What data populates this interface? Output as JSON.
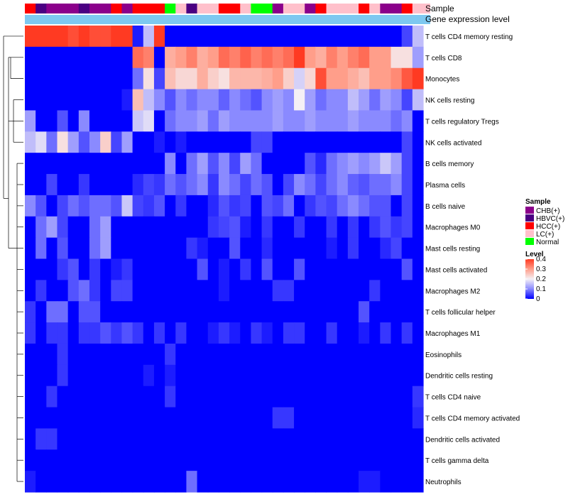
{
  "chart_data": {
    "type": "heatmap",
    "title": "",
    "annotation_labels": [
      "Sample",
      "Gene expression level"
    ],
    "rows": [
      "T cells CD4 memory resting",
      "T cells CD8",
      "Monocytes",
      "NK cells resting",
      "T cells regulatory  Tregs",
      "NK cells activated",
      "B cells memory",
      "Plasma cells",
      "B cells naive",
      "Macrophages M0",
      "Mast cells resting",
      "Mast cells activated",
      "Macrophages M2",
      "T cells follicular helper",
      "Macrophages M1",
      "Eosinophils",
      "Dendritic cells resting",
      "T cells CD4 naive",
      "T cells CD4 memory activated",
      "Dendritic cells activated",
      "T cells gamma delta",
      "Neutrophils"
    ],
    "sample_groups": [
      "HCC(+)",
      "HBVC(+)",
      "CHB(+)",
      "CHB(+)",
      "CHB(+)",
      "HBVC(+)",
      "CHB(+)",
      "CHB(+)",
      "HCC(+)",
      "CHB(+)",
      "HCC(+)",
      "HCC(+)",
      "HCC(+)",
      "Normal",
      "LC(+)",
      "HBVC(+)",
      "LC(+)",
      "LC(+)",
      "HCC(+)",
      "HCC(+)",
      "LC(+)",
      "Normal",
      "Normal",
      "CHB(+)",
      "LC(+)",
      "LC(+)",
      "CHB(+)",
      "HCC(+)",
      "LC(+)",
      "LC(+)",
      "LC(+)",
      "HCC(+)",
      "LC(+)",
      "CHB(+)",
      "CHB(+)",
      "HCC(+)",
      "LC(+)"
    ],
    "column_count": 37,
    "values": [
      [
        0.4,
        0.4,
        0.4,
        0.4,
        0.38,
        0.4,
        0.38,
        0.38,
        0.4,
        0.4,
        0.02,
        0.15,
        0.4,
        0.0,
        0.0,
        0.0,
        0.0,
        0.0,
        0.0,
        0.0,
        0.0,
        0.0,
        0.0,
        0.0,
        0.0,
        0.0,
        0.0,
        0.0,
        0.0,
        0.0,
        0.0,
        0.0,
        0.0,
        0.0,
        0.0,
        0.05,
        0.15
      ],
      [
        0.0,
        0.0,
        0.0,
        0.0,
        0.0,
        0.0,
        0.0,
        0.0,
        0.0,
        0.0,
        0.35,
        0.33,
        0.0,
        0.28,
        0.3,
        0.33,
        0.28,
        0.3,
        0.35,
        0.33,
        0.36,
        0.33,
        0.35,
        0.33,
        0.35,
        0.4,
        0.3,
        0.28,
        0.33,
        0.3,
        0.33,
        0.35,
        0.3,
        0.3,
        0.22,
        0.22,
        0.12
      ],
      [
        0.0,
        0.0,
        0.0,
        0.0,
        0.0,
        0.0,
        0.0,
        0.0,
        0.0,
        0.0,
        0.08,
        0.22,
        0.05,
        0.26,
        0.23,
        0.23,
        0.28,
        0.24,
        0.22,
        0.27,
        0.27,
        0.27,
        0.28,
        0.3,
        0.24,
        0.17,
        0.23,
        0.38,
        0.3,
        0.3,
        0.28,
        0.26,
        0.3,
        0.3,
        0.32,
        0.37,
        0.4
      ],
      [
        0.0,
        0.0,
        0.0,
        0.0,
        0.0,
        0.0,
        0.0,
        0.0,
        0.0,
        0.02,
        0.26,
        0.15,
        0.1,
        0.06,
        0.1,
        0.08,
        0.1,
        0.1,
        0.07,
        0.1,
        0.08,
        0.06,
        0.1,
        0.12,
        0.1,
        0.2,
        0.12,
        0.08,
        0.1,
        0.1,
        0.15,
        0.12,
        0.08,
        0.12,
        0.1,
        0.05,
        0.15
      ],
      [
        0.12,
        0.0,
        0.0,
        0.06,
        0.0,
        0.1,
        0.0,
        0.0,
        0.0,
        0.0,
        0.16,
        0.18,
        0.0,
        0.08,
        0.1,
        0.1,
        0.12,
        0.08,
        0.12,
        0.1,
        0.1,
        0.1,
        0.1,
        0.12,
        0.1,
        0.1,
        0.12,
        0.1,
        0.1,
        0.1,
        0.12,
        0.1,
        0.1,
        0.1,
        0.08,
        0.1,
        0.0
      ],
      [
        0.15,
        0.18,
        0.08,
        0.22,
        0.12,
        0.06,
        0.1,
        0.24,
        0.05,
        0.12,
        0.0,
        0.0,
        0.02,
        0.0,
        0.02,
        0.0,
        0.0,
        0.0,
        0.0,
        0.0,
        0.0,
        0.05,
        0.05,
        0.0,
        0.0,
        0.0,
        0.0,
        0.0,
        0.0,
        0.0,
        0.0,
        0.0,
        0.0,
        0.0,
        0.0,
        0.05,
        0.0
      ],
      [
        0.0,
        0.0,
        0.0,
        0.0,
        0.0,
        0.0,
        0.0,
        0.0,
        0.0,
        0.0,
        0.0,
        0.0,
        0.0,
        0.1,
        0.0,
        0.08,
        0.12,
        0.06,
        0.1,
        0.05,
        0.12,
        0.08,
        0.0,
        0.0,
        0.0,
        0.0,
        0.06,
        0.03,
        0.08,
        0.1,
        0.12,
        0.1,
        0.12,
        0.16,
        0.12,
        0.05,
        0.0
      ],
      [
        0.0,
        0.0,
        0.05,
        0.0,
        0.0,
        0.04,
        0.0,
        0.0,
        0.0,
        0.0,
        0.03,
        0.05,
        0.04,
        0.08,
        0.06,
        0.08,
        0.1,
        0.04,
        0.1,
        0.08,
        0.05,
        0.08,
        0.06,
        0.0,
        0.05,
        0.1,
        0.08,
        0.05,
        0.08,
        0.1,
        0.07,
        0.06,
        0.08,
        0.08,
        0.1,
        0.05,
        0.0
      ],
      [
        0.1,
        0.06,
        0.0,
        0.05,
        0.08,
        0.06,
        0.08,
        0.08,
        0.06,
        0.16,
        0.05,
        0.04,
        0.06,
        0.0,
        0.04,
        0.0,
        0.0,
        0.03,
        0.06,
        0.04,
        0.05,
        0.0,
        0.06,
        0.05,
        0.08,
        0.0,
        0.04,
        0.06,
        0.05,
        0.08,
        0.1,
        0.08,
        0.06,
        0.06,
        0.0,
        0.05,
        0.0
      ],
      [
        0.0,
        0.08,
        0.12,
        0.05,
        0.0,
        0.0,
        0.08,
        0.12,
        0.0,
        0.0,
        0.0,
        0.0,
        0.0,
        0.0,
        0.0,
        0.0,
        0.0,
        0.04,
        0.05,
        0.06,
        0.02,
        0.0,
        0.04,
        0.0,
        0.0,
        0.04,
        0.0,
        0.0,
        0.04,
        0.0,
        0.04,
        0.0,
        0.04,
        0.06,
        0.04,
        0.05,
        0.0
      ],
      [
        0.0,
        0.08,
        0.0,
        0.06,
        0.0,
        0.0,
        0.08,
        0.12,
        0.0,
        0.0,
        0.0,
        0.0,
        0.0,
        0.0,
        0.0,
        0.04,
        0.02,
        0.0,
        0.0,
        0.06,
        0.0,
        0.0,
        0.03,
        0.0,
        0.0,
        0.0,
        0.0,
        0.0,
        0.02,
        0.0,
        0.04,
        0.0,
        0.0,
        0.03,
        0.05,
        0.0,
        0.0
      ],
      [
        0.0,
        0.0,
        0.0,
        0.04,
        0.06,
        0.0,
        0.04,
        0.0,
        0.02,
        0.04,
        0.0,
        0.0,
        0.0,
        0.0,
        0.0,
        0.0,
        0.06,
        0.0,
        0.02,
        0.0,
        0.04,
        0.0,
        0.06,
        0.0,
        0.0,
        0.06,
        0.0,
        0.0,
        0.0,
        0.0,
        0.0,
        0.0,
        0.0,
        0.0,
        0.0,
        0.06,
        0.0
      ],
      [
        0.0,
        0.04,
        0.0,
        0.0,
        0.06,
        0.08,
        0.04,
        0.0,
        0.05,
        0.05,
        0.0,
        0.0,
        0.0,
        0.0,
        0.0,
        0.0,
        0.0,
        0.0,
        0.02,
        0.0,
        0.0,
        0.0,
        0.0,
        0.04,
        0.04,
        0.0,
        0.0,
        0.0,
        0.0,
        0.0,
        0.0,
        0.0,
        0.04,
        0.0,
        0.0,
        0.0,
        0.0
      ],
      [
        0.04,
        0.0,
        0.08,
        0.08,
        0.0,
        0.06,
        0.06,
        0.0,
        0.0,
        0.0,
        0.0,
        0.0,
        0.0,
        0.0,
        0.0,
        0.0,
        0.0,
        0.0,
        0.0,
        0.0,
        0.0,
        0.0,
        0.0,
        0.0,
        0.0,
        0.0,
        0.0,
        0.0,
        0.0,
        0.0,
        0.0,
        0.06,
        0.0,
        0.0,
        0.0,
        0.0,
        0.0
      ],
      [
        0.04,
        0.0,
        0.04,
        0.04,
        0.0,
        0.04,
        0.04,
        0.06,
        0.04,
        0.06,
        0.04,
        0.0,
        0.04,
        0.0,
        0.04,
        0.0,
        0.0,
        0.02,
        0.04,
        0.02,
        0.0,
        0.04,
        0.02,
        0.0,
        0.04,
        0.04,
        0.0,
        0.0,
        0.04,
        0.0,
        0.0,
        0.02,
        0.0,
        0.04,
        0.0,
        0.04,
        0.0
      ],
      [
        0.0,
        0.0,
        0.0,
        0.04,
        0.0,
        0.0,
        0.0,
        0.0,
        0.0,
        0.0,
        0.0,
        0.0,
        0.0,
        0.04,
        0.0,
        0.0,
        0.0,
        0.0,
        0.0,
        0.0,
        0.0,
        0.0,
        0.0,
        0.0,
        0.0,
        0.0,
        0.0,
        0.0,
        0.0,
        0.0,
        0.0,
        0.0,
        0.0,
        0.0,
        0.0,
        0.0,
        0.0
      ],
      [
        0.0,
        0.0,
        0.0,
        0.04,
        0.0,
        0.0,
        0.0,
        0.0,
        0.0,
        0.0,
        0.0,
        0.02,
        0.0,
        0.02,
        0.0,
        0.0,
        0.0,
        0.0,
        0.0,
        0.0,
        0.0,
        0.0,
        0.0,
        0.0,
        0.0,
        0.0,
        0.0,
        0.0,
        0.0,
        0.0,
        0.0,
        0.0,
        0.0,
        0.0,
        0.0,
        0.0,
        0.0
      ],
      [
        0.0,
        0.0,
        0.04,
        0.0,
        0.0,
        0.0,
        0.0,
        0.0,
        0.0,
        0.0,
        0.0,
        0.0,
        0.0,
        0.04,
        0.0,
        0.0,
        0.0,
        0.0,
        0.0,
        0.0,
        0.0,
        0.0,
        0.0,
        0.0,
        0.0,
        0.0,
        0.0,
        0.0,
        0.0,
        0.0,
        0.0,
        0.0,
        0.0,
        0.0,
        0.0,
        0.0,
        0.04
      ],
      [
        0.0,
        0.0,
        0.0,
        0.0,
        0.0,
        0.0,
        0.0,
        0.0,
        0.0,
        0.0,
        0.0,
        0.0,
        0.0,
        0.0,
        0.0,
        0.0,
        0.0,
        0.0,
        0.0,
        0.0,
        0.0,
        0.0,
        0.0,
        0.04,
        0.04,
        0.0,
        0.0,
        0.0,
        0.0,
        0.0,
        0.0,
        0.0,
        0.0,
        0.0,
        0.0,
        0.0,
        0.03
      ],
      [
        0.0,
        0.04,
        0.04,
        0.0,
        0.0,
        0.0,
        0.0,
        0.0,
        0.0,
        0.0,
        0.0,
        0.0,
        0.0,
        0.0,
        0.0,
        0.0,
        0.0,
        0.0,
        0.0,
        0.0,
        0.0,
        0.0,
        0.0,
        0.0,
        0.0,
        0.0,
        0.0,
        0.0,
        0.0,
        0.0,
        0.0,
        0.0,
        0.0,
        0.0,
        0.0,
        0.0,
        0.0
      ],
      [
        0.0,
        0.0,
        0.0,
        0.0,
        0.0,
        0.0,
        0.0,
        0.0,
        0.0,
        0.0,
        0.0,
        0.0,
        0.0,
        0.0,
        0.0,
        0.0,
        0.0,
        0.0,
        0.0,
        0.0,
        0.0,
        0.0,
        0.0,
        0.0,
        0.0,
        0.0,
        0.0,
        0.0,
        0.0,
        0.0,
        0.0,
        0.0,
        0.0,
        0.0,
        0.0,
        0.0,
        0.0
      ],
      [
        0.02,
        0.0,
        0.0,
        0.0,
        0.0,
        0.0,
        0.0,
        0.0,
        0.0,
        0.0,
        0.0,
        0.0,
        0.0,
        0.0,
        0.0,
        0.08,
        0.0,
        0.0,
        0.0,
        0.0,
        0.0,
        0.0,
        0.0,
        0.0,
        0.0,
        0.0,
        0.0,
        0.0,
        0.0,
        0.0,
        0.0,
        0.02,
        0.02,
        0.0,
        0.0,
        0.0,
        0.0
      ]
    ],
    "color_scale": {
      "stops": [
        [
          0.0,
          "#0000ff"
        ],
        [
          0.1,
          "#8a8aff"
        ],
        [
          0.2,
          "#f5f0f5"
        ],
        [
          0.3,
          "#ff9e8a"
        ],
        [
          0.4,
          "#ff3a22"
        ]
      ],
      "range": [
        0,
        0.4
      ]
    },
    "legend": {
      "sample": {
        "title": "Sample",
        "entries": [
          {
            "label": "CHB(+)",
            "color": "#8b008b"
          },
          {
            "label": "HBVC(+)",
            "color": "#4b0082"
          },
          {
            "label": "HCC(+)",
            "color": "#ff0000"
          },
          {
            "label": "LC(+)",
            "color": "#ffc0cb"
          },
          {
            "label": "Normal",
            "color": "#00ff00"
          }
        ]
      },
      "level": {
        "title": "Level",
        "ticks": [
          0.4,
          0.3,
          0.2,
          0.1,
          0
        ]
      },
      "placement": "right"
    },
    "gene_expression_bar_color": "#7ec8f0"
  }
}
